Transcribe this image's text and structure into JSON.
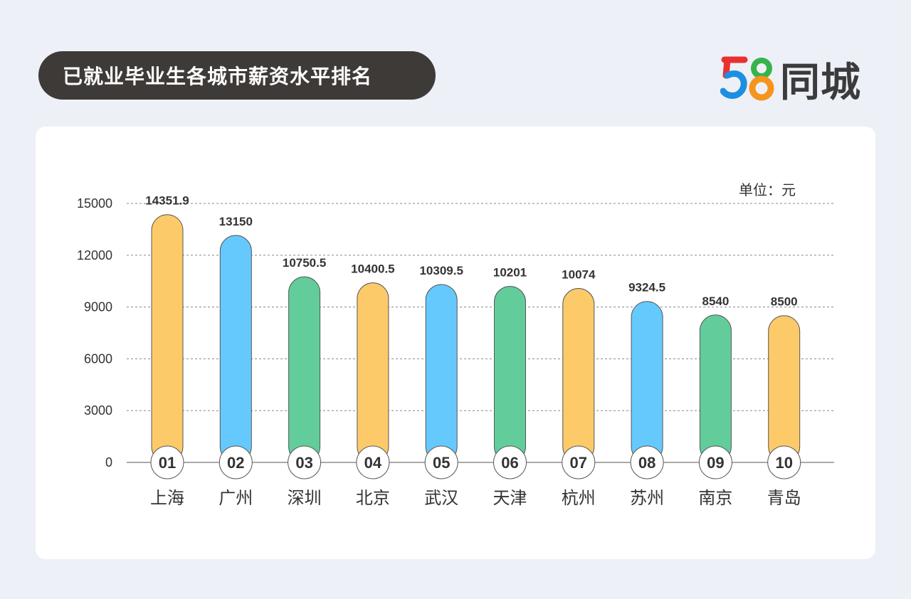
{
  "header": {
    "title": "已就业毕业生各城市薪资水平排名"
  },
  "logo": {
    "number": "58",
    "text": "同城",
    "colors": [
      "#e8312f",
      "#1e8fe0",
      "#f7941d",
      "#37b34a"
    ]
  },
  "chart_data": {
    "type": "bar",
    "unit_label": "单位：元",
    "categories": [
      "上海",
      "广州",
      "深圳",
      "北京",
      "武汉",
      "天津",
      "杭州",
      "苏州",
      "南京",
      "青岛"
    ],
    "ranks": [
      "01",
      "02",
      "03",
      "04",
      "05",
      "06",
      "07",
      "08",
      "09",
      "10"
    ],
    "values": [
      14351.9,
      13150,
      10750.5,
      10400.5,
      10309.5,
      10201,
      10074,
      9324.5,
      8540,
      8500
    ],
    "value_labels": [
      "14351.9",
      "13150",
      "10750.5",
      "10400.5",
      "10309.5",
      "10201",
      "10074",
      "9324.5",
      "8540",
      "8500"
    ],
    "bar_colors": [
      "#fdca6a",
      "#66c9fd",
      "#62cd9b",
      "#fdca6a",
      "#66c9fd",
      "#62cd9b",
      "#fdca6a",
      "#66c9fd",
      "#62cd9b",
      "#fdca6a"
    ],
    "ylim": [
      0,
      15000
    ],
    "yticks": [
      0,
      3000,
      6000,
      9000,
      12000,
      15000
    ],
    "grid": true,
    "grid_style": "dashed"
  }
}
